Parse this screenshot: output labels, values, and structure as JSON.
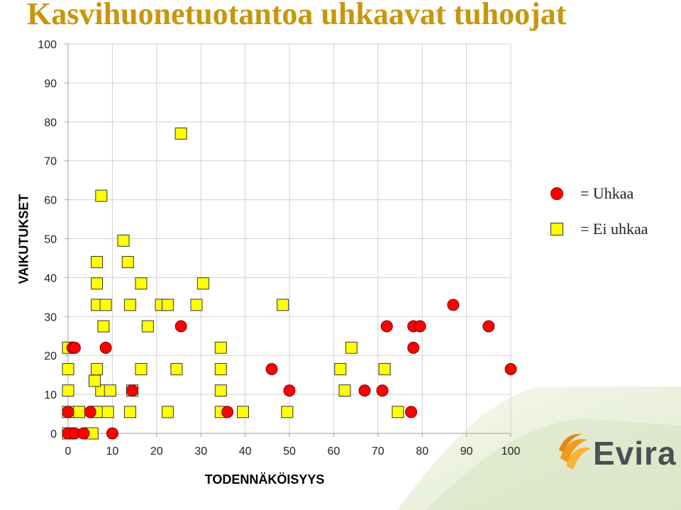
{
  "title": "Kasvihuonetuotantoa uhkaavat tuhoojat",
  "logo_text": "Evira",
  "colors": {
    "title": "#c8960c",
    "threat": "#ff0000",
    "non_threat": "#ffff00",
    "grid": "#d0d0d0"
  },
  "legend": [
    {
      "label": "= Uhkaa",
      "marker": "red-circle"
    },
    {
      "label": "= Ei uhkaa",
      "marker": "yellow-square"
    }
  ],
  "chart_data": {
    "type": "scatter",
    "xlabel": "TODENNÄKÖISYYS",
    "ylabel": "VAIKUTUKSET",
    "xlim": [
      0,
      100
    ],
    "ylim": [
      0,
      100
    ],
    "xticks": [
      0,
      10,
      20,
      30,
      40,
      50,
      60,
      70,
      80,
      90,
      100
    ],
    "yticks": [
      0,
      10,
      20,
      30,
      40,
      50,
      60,
      70,
      80,
      90,
      100
    ],
    "grid": true,
    "legend_position": "right",
    "series": [
      {
        "name": "Uhkaa",
        "marker": "circle",
        "color": "#ff0000",
        "points": [
          [
            0,
            0
          ],
          [
            1.5,
            0
          ],
          [
            3.5,
            0
          ],
          [
            10,
            0
          ],
          [
            0,
            5.5
          ],
          [
            5,
            5.5
          ],
          [
            36,
            5.5
          ],
          [
            77.5,
            5.5
          ],
          [
            14.5,
            11
          ],
          [
            50,
            11
          ],
          [
            67,
            11
          ],
          [
            71,
            11
          ],
          [
            46,
            16.5
          ],
          [
            100,
            16.5
          ],
          [
            1,
            22
          ],
          [
            1.5,
            22
          ],
          [
            8.5,
            22
          ],
          [
            78,
            22
          ],
          [
            25.5,
            27.5
          ],
          [
            72,
            27.5
          ],
          [
            78,
            27.5
          ],
          [
            79.5,
            27.5
          ],
          [
            95,
            27.5
          ],
          [
            87,
            33
          ]
        ]
      },
      {
        "name": "Ei uhkaa",
        "marker": "square",
        "color": "#ffff00",
        "points": [
          [
            0,
            0
          ],
          [
            5,
            0
          ],
          [
            5.5,
            0
          ],
          [
            0,
            5.5
          ],
          [
            2.5,
            5.5
          ],
          [
            6,
            5.5
          ],
          [
            6.5,
            5.5
          ],
          [
            9,
            5.5
          ],
          [
            14,
            5.5
          ],
          [
            22.5,
            5.5
          ],
          [
            34.5,
            5.5
          ],
          [
            39.5,
            5.5
          ],
          [
            49.5,
            5.5
          ],
          [
            74.5,
            5.5
          ],
          [
            0,
            11
          ],
          [
            7.5,
            11
          ],
          [
            9.5,
            11
          ],
          [
            14.5,
            11
          ],
          [
            34.5,
            11
          ],
          [
            62.5,
            11
          ],
          [
            6,
            13.5
          ],
          [
            0,
            16.5
          ],
          [
            6.5,
            16.5
          ],
          [
            16.5,
            16.5
          ],
          [
            24.5,
            16.5
          ],
          [
            34.5,
            16.5
          ],
          [
            61.5,
            16.5
          ],
          [
            71.5,
            16.5
          ],
          [
            0,
            22
          ],
          [
            34.5,
            22
          ],
          [
            64,
            22
          ],
          [
            8,
            27.5
          ],
          [
            18,
            27.5
          ],
          [
            6.5,
            33
          ],
          [
            8.5,
            33
          ],
          [
            14,
            33
          ],
          [
            21,
            33
          ],
          [
            22.5,
            33
          ],
          [
            29,
            33
          ],
          [
            48.5,
            33
          ],
          [
            6.5,
            38.5
          ],
          [
            16.5,
            38.5
          ],
          [
            30.5,
            38.5
          ],
          [
            6.5,
            44
          ],
          [
            13.5,
            44
          ],
          [
            12.5,
            49.5
          ],
          [
            7.5,
            61
          ],
          [
            25.5,
            77
          ]
        ]
      }
    ]
  }
}
